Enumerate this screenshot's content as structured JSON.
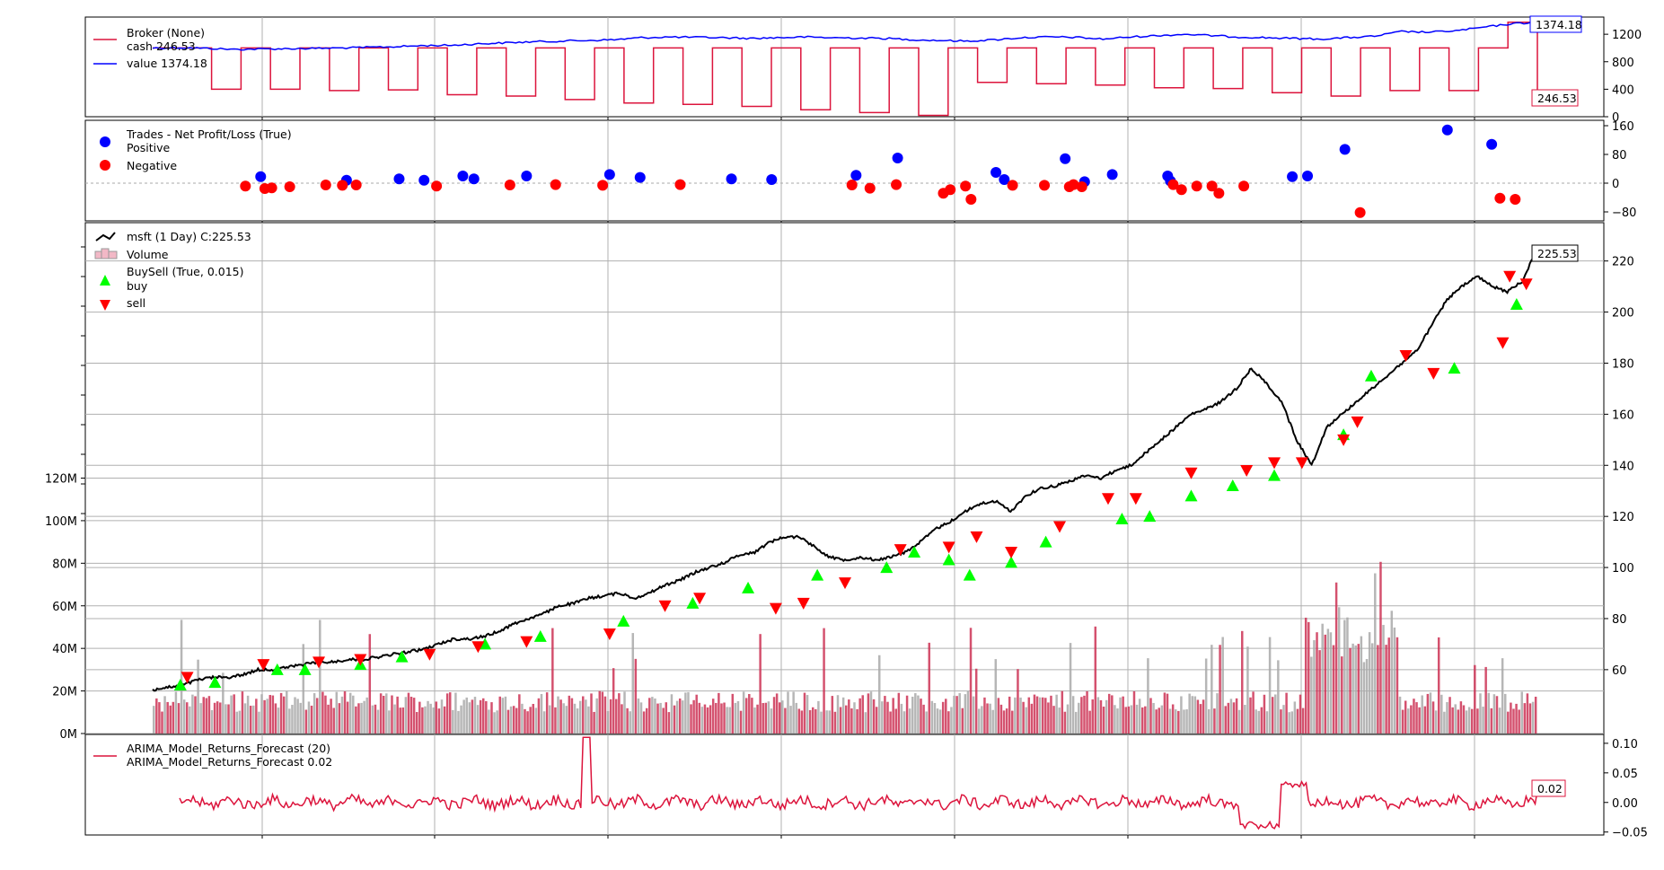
{
  "chart_data": {
    "type": "line",
    "colors": {
      "broker_cash": "#dc143c",
      "broker_value": "#0000ff",
      "positive": "#0000ff",
      "negative": "#ff0000",
      "price": "#000000",
      "buy": "#00ff00",
      "sell": "#ff0000",
      "volume_up": "#a9a9a9",
      "volume_down": "#cc3355",
      "arima": "#dc143c"
    },
    "panels": [
      {
        "id": "broker",
        "legend": [
          "Broker (None)",
          "cash 246.53",
          "value 1374.18"
        ],
        "ylim": [
          0,
          1450
        ],
        "yticks": [
          "0",
          "400",
          "800",
          "1200"
        ],
        "yticks_values": [
          0,
          400,
          800,
          1200
        ],
        "tags": [
          {
            "text": "1374.18",
            "value": 1374.18,
            "color": "#0000ff"
          },
          {
            "text": "246.53",
            "value": 246.53,
            "color": "#dc143c"
          }
        ],
        "value_series": [
          1000,
          1005,
          995,
          980,
          985,
          990,
          995,
          1000,
          1010,
          1020,
          1035,
          1040,
          1060,
          1075,
          1090,
          1100,
          1110,
          1120,
          1150,
          1160,
          1155,
          1150,
          1140,
          1150,
          1160,
          1150,
          1145,
          1140,
          1120,
          1110,
          1100,
          1120,
          1150,
          1160,
          1155,
          1130,
          1160,
          1180,
          1200,
          1180,
          1160,
          1150,
          1140,
          1130,
          1150,
          1170,
          1240,
          1230,
          1250,
          1300,
          1350,
          1374.18
        ],
        "cash_series": [
          1000,
          1000,
          400,
          1000,
          400,
          1000,
          380,
          1000,
          390,
          1000,
          320,
          1000,
          300,
          1000,
          250,
          1000,
          200,
          1000,
          180,
          1000,
          150,
          1000,
          100,
          1000,
          60,
          1000,
          20,
          1000,
          500,
          1000,
          480,
          1000,
          460,
          1000,
          420,
          1000,
          410,
          1000,
          350,
          1000,
          300,
          1000,
          380,
          1000,
          380,
          1000,
          1374,
          246.53
        ]
      },
      {
        "id": "trades",
        "legend": [
          "Trades - Net Profit/Loss (True)",
          "Positive",
          "Negative"
        ],
        "ylim": [
          -105,
          175
        ],
        "yticks": [
          "−80",
          "0",
          "80",
          "160"
        ],
        "yticks_values": [
          -80,
          0,
          80,
          160
        ],
        "positive": [
          [
            0.078,
            18
          ],
          [
            0.14,
            8
          ],
          [
            0.178,
            12
          ],
          [
            0.196,
            8
          ],
          [
            0.224,
            20
          ],
          [
            0.232,
            12
          ],
          [
            0.27,
            20
          ],
          [
            0.33,
            24
          ],
          [
            0.352,
            16
          ],
          [
            0.418,
            12
          ],
          [
            0.447,
            10
          ],
          [
            0.508,
            22
          ],
          [
            0.538,
            70
          ],
          [
            0.609,
            30
          ],
          [
            0.615,
            10
          ],
          [
            0.659,
            68
          ],
          [
            0.673,
            4
          ],
          [
            0.693,
            24
          ],
          [
            0.733,
            20
          ],
          [
            0.735,
            6
          ],
          [
            0.823,
            18
          ],
          [
            0.834,
            20
          ],
          [
            0.861,
            94
          ],
          [
            0.935,
            148
          ],
          [
            0.967,
            108
          ]
        ],
        "negative": [
          [
            0.067,
            -8
          ],
          [
            0.081,
            -15
          ],
          [
            0.086,
            -13
          ],
          [
            0.099,
            -10
          ],
          [
            0.125,
            -5
          ],
          [
            0.137,
            -6
          ],
          [
            0.147,
            -5
          ],
          [
            0.205,
            -8
          ],
          [
            0.258,
            -5
          ],
          [
            0.291,
            -4
          ],
          [
            0.325,
            -6
          ],
          [
            0.381,
            -4
          ],
          [
            0.505,
            -5
          ],
          [
            0.518,
            -14
          ],
          [
            0.537,
            -4
          ],
          [
            0.571,
            -28
          ],
          [
            0.576,
            -18
          ],
          [
            0.587,
            -8
          ],
          [
            0.591,
            -45
          ],
          [
            0.621,
            -6
          ],
          [
            0.644,
            -6
          ],
          [
            0.662,
            -10
          ],
          [
            0.665,
            -4
          ],
          [
            0.671,
            -10
          ],
          [
            0.737,
            -4
          ],
          [
            0.743,
            -18
          ],
          [
            0.754,
            -8
          ],
          [
            0.765,
            -8
          ],
          [
            0.77,
            -28
          ],
          [
            0.788,
            -8
          ],
          [
            0.872,
            -82
          ],
          [
            0.973,
            -42
          ],
          [
            0.984,
            -45
          ]
        ]
      },
      {
        "id": "price",
        "legend": [
          "msft (1 Day) C:225.53",
          "Volume",
          "BuySell (True, 0.015)",
          "buy",
          "sell"
        ],
        "ylim": [
          35,
          235
        ],
        "yticks": [
          "60",
          "80",
          "100",
          "120",
          "140",
          "160",
          "180",
          "200",
          "220"
        ],
        "yticks_values": [
          60,
          80,
          100,
          120,
          140,
          160,
          180,
          200,
          220
        ],
        "volume_ylim": [
          0,
          240
        ],
        "volume_ticks": [
          "0M",
          "20M",
          "40M",
          "60M",
          "80M",
          "100M",
          "120M"
        ],
        "volume_ticks_values": [
          0,
          20,
          40,
          60,
          80,
          100,
          120
        ],
        "tag": {
          "text": "225.53",
          "value": 225.53
        },
        "close_series": [
          52,
          53,
          54,
          56,
          57,
          57,
          58,
          60,
          60,
          61,
          62,
          63,
          63,
          64,
          64,
          65,
          66,
          67,
          68,
          70,
          72,
          72,
          73,
          75,
          78,
          80,
          82,
          85,
          86,
          88,
          89,
          90,
          88,
          90,
          93,
          95,
          98,
          100,
          102,
          105,
          106,
          110,
          112,
          112,
          108,
          104,
          103,
          104,
          103,
          104,
          106,
          110,
          115,
          118,
          122,
          125,
          126,
          122,
          128,
          131,
          132,
          134,
          136,
          135,
          138,
          140,
          145,
          150,
          155,
          160,
          162,
          165,
          170,
          178,
          172,
          165,
          150,
          140,
          155,
          160,
          165,
          170,
          175,
          180,
          185,
          195,
          205,
          210,
          214,
          210,
          208,
          212,
          225.53
        ],
        "buy_markers": [
          [
            0.02,
            54
          ],
          [
            0.045,
            55
          ],
          [
            0.09,
            60
          ],
          [
            0.11,
            60
          ],
          [
            0.15,
            62
          ],
          [
            0.18,
            65
          ],
          [
            0.24,
            70
          ],
          [
            0.28,
            73
          ],
          [
            0.34,
            79
          ],
          [
            0.39,
            86
          ],
          [
            0.43,
            92
          ],
          [
            0.48,
            97
          ],
          [
            0.53,
            100
          ],
          [
            0.55,
            106
          ],
          [
            0.575,
            103
          ],
          [
            0.59,
            97
          ],
          [
            0.62,
            102
          ],
          [
            0.645,
            110
          ],
          [
            0.7,
            119
          ],
          [
            0.72,
            120
          ],
          [
            0.75,
            128
          ],
          [
            0.78,
            132
          ],
          [
            0.81,
            136
          ],
          [
            0.86,
            152
          ],
          [
            0.88,
            175
          ],
          [
            0.94,
            178
          ],
          [
            0.985,
            203
          ]
        ],
        "sell_markers": [
          [
            0.025,
            57
          ],
          [
            0.08,
            62
          ],
          [
            0.12,
            63
          ],
          [
            0.15,
            64
          ],
          [
            0.2,
            66
          ],
          [
            0.235,
            69
          ],
          [
            0.27,
            71
          ],
          [
            0.33,
            74
          ],
          [
            0.37,
            85
          ],
          [
            0.395,
            88
          ],
          [
            0.45,
            84
          ],
          [
            0.47,
            86
          ],
          [
            0.5,
            94
          ],
          [
            0.54,
            107
          ],
          [
            0.575,
            108
          ],
          [
            0.595,
            112
          ],
          [
            0.62,
            106
          ],
          [
            0.655,
            116
          ],
          [
            0.69,
            127
          ],
          [
            0.71,
            127
          ],
          [
            0.75,
            137
          ],
          [
            0.79,
            138
          ],
          [
            0.81,
            141
          ],
          [
            0.83,
            141
          ],
          [
            0.86,
            150
          ],
          [
            0.87,
            157
          ],
          [
            0.905,
            183
          ],
          [
            0.925,
            176
          ],
          [
            0.975,
            188
          ],
          [
            0.98,
            214
          ],
          [
            0.992,
            211
          ]
        ]
      },
      {
        "id": "arima",
        "legend": [
          "ARIMA_Model_Returns_Forecast (20)",
          "ARIMA_Model_Returns_Forecast 0.02"
        ],
        "ylim": [
          -0.055,
          0.115
        ],
        "yticks": [
          "−0.05",
          "0.00",
          "0.05",
          "0.10"
        ],
        "yticks_values": [
          -0.05,
          0.0,
          0.05,
          0.1
        ],
        "tag": {
          "text": "0.02",
          "value": 0.02
        }
      }
    ]
  }
}
